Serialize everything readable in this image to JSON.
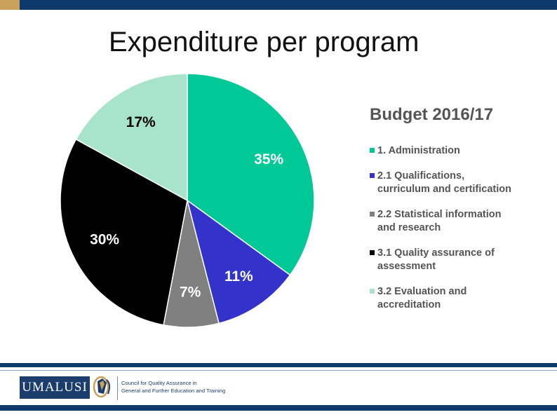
{
  "title": "Expenditure per program",
  "chart_data": {
    "type": "pie",
    "title": "Budget 2016/17",
    "slices": [
      {
        "label": "1. Administration",
        "value": 35,
        "value_label": "35%",
        "color": "#00c897"
      },
      {
        "label": "2.1 Qualifications,\ncurriculum and certification",
        "value": 11,
        "value_label": "11%",
        "color": "#3333cc"
      },
      {
        "label": "2.2 Statistical information\nand research",
        "value": 7,
        "value_label": "7%",
        "color": "#808080"
      },
      {
        "label": "3.1 Quality assurance of\nassessment",
        "value": 30,
        "value_label": "30%",
        "color": "#000000"
      },
      {
        "label": "3.2 Evaluation and\naccreditation",
        "value": 17,
        "value_label": "17%",
        "color": "#a8e3cb"
      }
    ],
    "legend_position": "right"
  },
  "footer": {
    "logo_text": "UMALUSI",
    "tagline_line1": "Council for Quality Assurance in",
    "tagline_line2": "General and Further Education and Training"
  },
  "colors": {
    "brand_navy": "#0e3a6b",
    "accent_gold": "#c9a15a",
    "legend_text": "#555555"
  }
}
